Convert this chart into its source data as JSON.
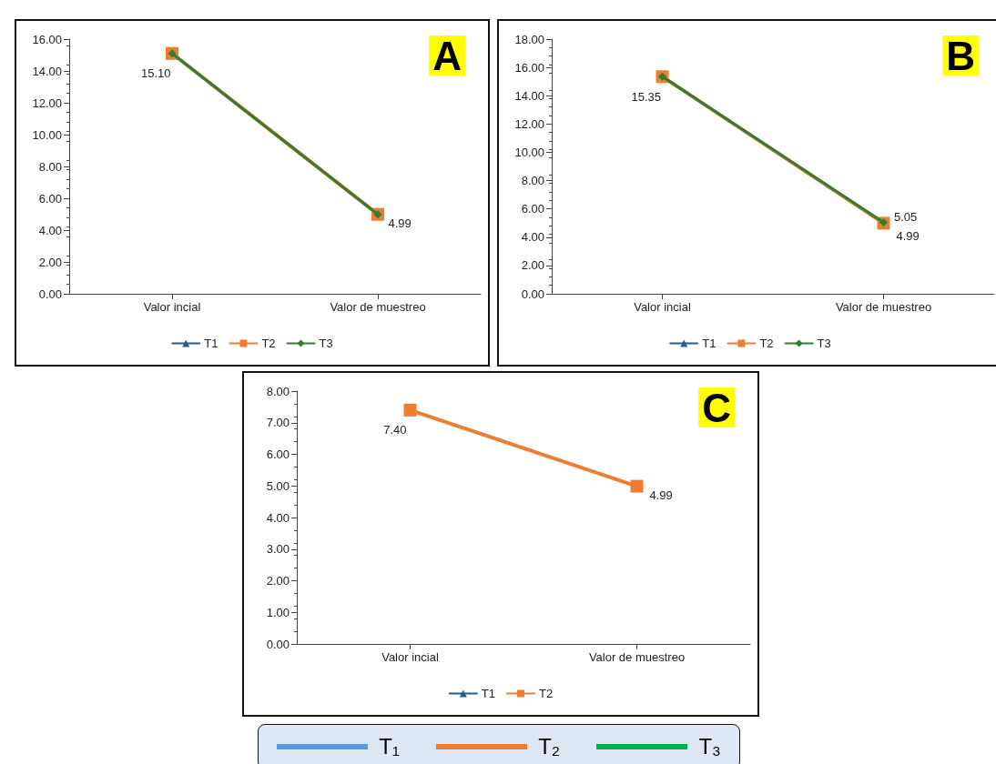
{
  "chart_data": [
    {
      "type": "line",
      "title": "A",
      "categories": [
        "Valor incial",
        "Valor de muestreo"
      ],
      "ylim": [
        0,
        16
      ],
      "yticks": [
        {
          "value": 0,
          "label": "0.00"
        },
        {
          "value": 2,
          "label": "2.00"
        },
        {
          "value": 4,
          "label": "4.00"
        },
        {
          "value": 6,
          "label": "6.00"
        },
        {
          "value": 8,
          "label": "8.00"
        },
        {
          "value": 10,
          "label": "10.00"
        },
        {
          "value": 12,
          "label": "12.00"
        },
        {
          "value": 14,
          "label": "14.00"
        },
        {
          "value": 16,
          "label": "16.00"
        }
      ],
      "grid": false,
      "legend": "bottom",
      "series": [
        {
          "name": "T1",
          "color": "#255e91",
          "marker": "triangle",
          "values": [
            null,
            null
          ]
        },
        {
          "name": "T2",
          "color": "#ed7d31",
          "marker": "square",
          "values": [
            15.1,
            4.99
          ]
        },
        {
          "name": "T3",
          "color": "#2e7d32",
          "marker": "diamond",
          "values": [
            15.1,
            4.99
          ],
          "value_labels": [
            "15.10",
            "4.99"
          ]
        }
      ]
    },
    {
      "type": "line",
      "title": "B",
      "categories": [
        "Valor incial",
        "Valor de muestreo"
      ],
      "ylim": [
        0,
        18
      ],
      "yticks": [
        {
          "value": 0,
          "label": "0.00"
        },
        {
          "value": 2,
          "label": "2.00"
        },
        {
          "value": 4,
          "label": "4.00"
        },
        {
          "value": 6,
          "label": "6.00"
        },
        {
          "value": 8,
          "label": "8.00"
        },
        {
          "value": 10,
          "label": "10.00"
        },
        {
          "value": 12,
          "label": "12.00"
        },
        {
          "value": 14,
          "label": "14.00"
        },
        {
          "value": 16,
          "label": "16.00"
        },
        {
          "value": 18,
          "label": "18.00"
        }
      ],
      "grid": false,
      "legend": "bottom",
      "series": [
        {
          "name": "T1",
          "color": "#255e91",
          "marker": "triangle",
          "values": [
            null,
            null
          ]
        },
        {
          "name": "T2",
          "color": "#ed7d31",
          "marker": "square",
          "values": [
            15.35,
            4.99
          ],
          "value_labels": [
            null,
            "4.99"
          ]
        },
        {
          "name": "T3",
          "color": "#2e7d32",
          "marker": "diamond",
          "values": [
            15.35,
            5.05
          ],
          "value_labels": [
            "15.35",
            "5.05"
          ]
        }
      ]
    },
    {
      "type": "line",
      "title": "C",
      "categories": [
        "Valor incial",
        "Valor de muestreo"
      ],
      "ylim": [
        0,
        8
      ],
      "yticks": [
        {
          "value": 0,
          "label": "0.00"
        },
        {
          "value": 1,
          "label": "1.00"
        },
        {
          "value": 2,
          "label": "2.00"
        },
        {
          "value": 3,
          "label": "3.00"
        },
        {
          "value": 4,
          "label": "4.00"
        },
        {
          "value": 5,
          "label": "5.00"
        },
        {
          "value": 6,
          "label": "6.00"
        },
        {
          "value": 7,
          "label": "7.00"
        },
        {
          "value": 8,
          "label": "8.00"
        }
      ],
      "grid": false,
      "legend": "bottom",
      "series": [
        {
          "name": "T1",
          "color": "#255e91",
          "marker": "triangle",
          "values": [
            null,
            null
          ]
        },
        {
          "name": "T2",
          "color": "#ed7d31",
          "marker": "square",
          "values": [
            7.4,
            4.99
          ],
          "value_labels": [
            "7.40",
            "4.99"
          ]
        }
      ]
    },
    {
      "type": "other",
      "legend": "bottom",
      "series": [
        {
          "name": "T₁",
          "color": "#5b9bd5"
        },
        {
          "name": "T₂",
          "color": "#ed7d31"
        },
        {
          "name": "T₃",
          "color": "#00b050"
        }
      ]
    }
  ]
}
